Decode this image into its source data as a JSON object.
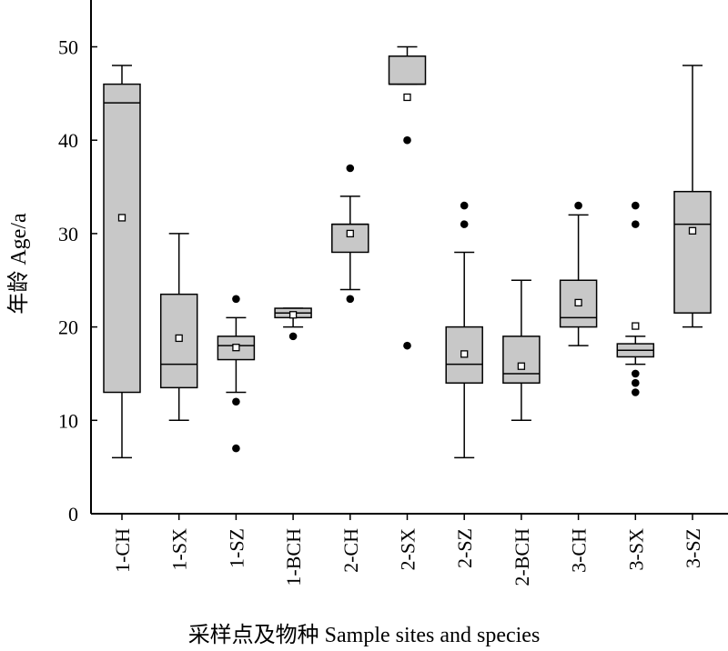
{
  "chart_data": {
    "type": "box",
    "ylabel": "年龄 Age/a",
    "xlabel": "采样点及物种 Sample sites and species",
    "ylim": [
      0,
      55
    ],
    "yticks": [
      0,
      10,
      20,
      30,
      40,
      50
    ],
    "box_color": "#c8c8c8",
    "grid": false,
    "categories": [
      "1-CH",
      "1-SX",
      "1-SZ",
      "1-BCH",
      "2-CH",
      "2-SX",
      "2-SZ",
      "2-BCH",
      "3-CH",
      "3-SX",
      "3-SZ"
    ],
    "boxes": [
      {
        "category": "1-CH",
        "whisker_low": 6,
        "q1": 13,
        "median": 44,
        "q3": 46,
        "whisker_high": 48,
        "mean": 31.7,
        "outliers": []
      },
      {
        "category": "1-SX",
        "whisker_low": 10,
        "q1": 13.5,
        "median": 16,
        "q3": 23.5,
        "whisker_high": 30,
        "mean": 18.8,
        "outliers": []
      },
      {
        "category": "1-SZ",
        "whisker_low": 13,
        "q1": 16.5,
        "median": 18,
        "q3": 19,
        "whisker_high": 21,
        "mean": 17.8,
        "outliers": [
          23,
          12,
          7
        ]
      },
      {
        "category": "1-BCH",
        "whisker_low": 20,
        "q1": 21,
        "median": 21.5,
        "q3": 22,
        "whisker_high": 22,
        "mean": 21.3,
        "outliers": [
          19
        ]
      },
      {
        "category": "2-CH",
        "whisker_low": 24,
        "q1": 28,
        "median": 31,
        "q3": 31,
        "whisker_high": 34,
        "mean": 30,
        "outliers": [
          37,
          23
        ]
      },
      {
        "category": "2-SX",
        "whisker_low": 46,
        "q1": 46,
        "median": 46,
        "q3": 49,
        "whisker_high": 50,
        "mean": 44.6,
        "outliers": [
          40,
          18
        ]
      },
      {
        "category": "2-SZ",
        "whisker_low": 6,
        "q1": 14,
        "median": 16,
        "q3": 20,
        "whisker_high": 28,
        "mean": 17.1,
        "outliers": [
          33,
          31
        ]
      },
      {
        "category": "2-BCH",
        "whisker_low": 10,
        "q1": 14,
        "median": 15,
        "q3": 19,
        "whisker_high": 25,
        "mean": 15.8,
        "outliers": []
      },
      {
        "category": "3-CH",
        "whisker_low": 18,
        "q1": 20,
        "median": 21,
        "q3": 25,
        "whisker_high": 32,
        "mean": 22.6,
        "outliers": [
          33
        ]
      },
      {
        "category": "3-SX",
        "whisker_low": 16,
        "q1": 16.8,
        "median": 17.5,
        "q3": 18.2,
        "whisker_high": 19,
        "mean": 20.1,
        "outliers": [
          33,
          31,
          15,
          14,
          13
        ]
      },
      {
        "category": "3-SZ",
        "whisker_low": 20,
        "q1": 21.5,
        "median": 31,
        "q3": 34.5,
        "whisker_high": 48,
        "mean": 30.3,
        "outliers": []
      }
    ]
  }
}
